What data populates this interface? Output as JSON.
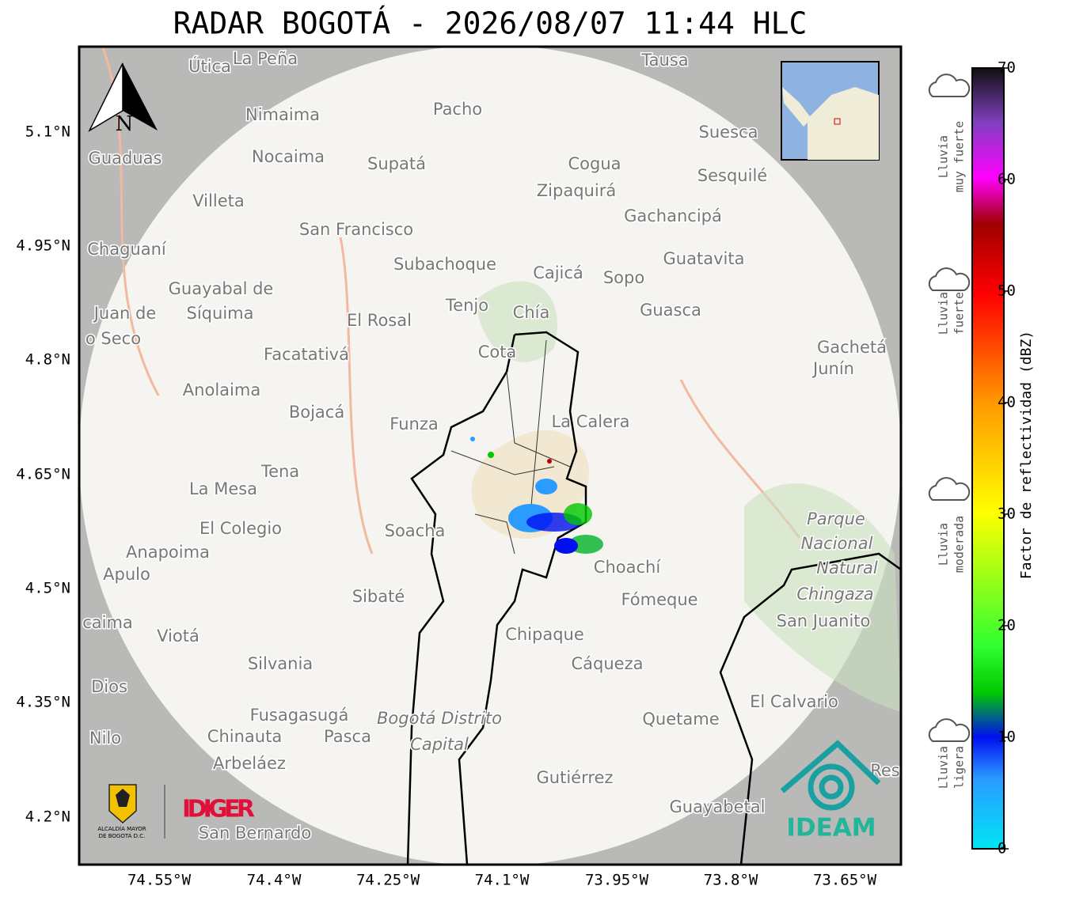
{
  "title": "RADAR BOGOTÁ - 2026/08/07 11:44 HLC",
  "map": {
    "north_label": "N",
    "lat_ticks": [
      "5.1°N",
      "4.95°N",
      "4.8°N",
      "4.65°N",
      "4.5°N",
      "4.35°N",
      "4.2°N"
    ],
    "lon_ticks": [
      "74.55°W",
      "74.4°W",
      "74.25°W",
      "74.1°W",
      "73.95°W",
      "73.8°W",
      "73.65°W"
    ],
    "places": [
      "Útica",
      "La Peña",
      "Tausa",
      "Pacho",
      "Nimaima",
      "Suesca",
      "Guaduas",
      "Nocaima",
      "Supatá",
      "Cogua",
      "Sesquilé",
      "Zipaquirá",
      "Villeta",
      "Gachancipá",
      "San Francisco",
      "Chaguaní",
      "Guatavita",
      "Subachoque",
      "Cajicá",
      "Sopo",
      "Guayabal de",
      "Síquima",
      "Tenjo",
      "Chía",
      "Guasca",
      "Juan de",
      "o Seco",
      "El Rosal",
      "Gachetá",
      "Junín",
      "Facatativá",
      "Cota",
      "Anolaima",
      "Bojacá",
      "La Calera",
      "Funza",
      "Tena",
      "La Mesa",
      "Parque",
      "Nacional",
      "Natural",
      "Chingaza",
      "El Colegio",
      "Soacha",
      "Anapoima",
      "Apulo",
      "Choachí",
      "Sibaté",
      "Fómeque",
      "San Juanito",
      "caima",
      "Viotá",
      "Chipaque",
      "Silvania",
      "Cáqueza",
      "Dios",
      "El Calvario",
      "Fusagasugá",
      "Quetame",
      "Bogotá Distrito",
      "Capital",
      "Nilo",
      "Chinauta",
      "Pasca",
      "Arbeláez",
      "Gutiérrez",
      "Res",
      "Guayabetal",
      "San Bernardo"
    ]
  },
  "colorbar": {
    "label": "Factor de reflectividad (dBZ)",
    "ticks": [
      0,
      10,
      20,
      30,
      40,
      50,
      60,
      70
    ]
  },
  "legend": [
    {
      "lines": [
        "Lluvia",
        "muy fuerte"
      ]
    },
    {
      "lines": [
        "Lluvia",
        "fuerte"
      ]
    },
    {
      "lines": [
        "Lluvia",
        "moderada"
      ]
    },
    {
      "lines": [
        "Lluvia",
        "ligera"
      ]
    }
  ],
  "logos": {
    "alcaldia": [
      "ALCALDÍA MAYOR",
      "DE BOGOTÁ D.C."
    ],
    "idiger": "IDIGER",
    "ideam": "IDEAM"
  }
}
